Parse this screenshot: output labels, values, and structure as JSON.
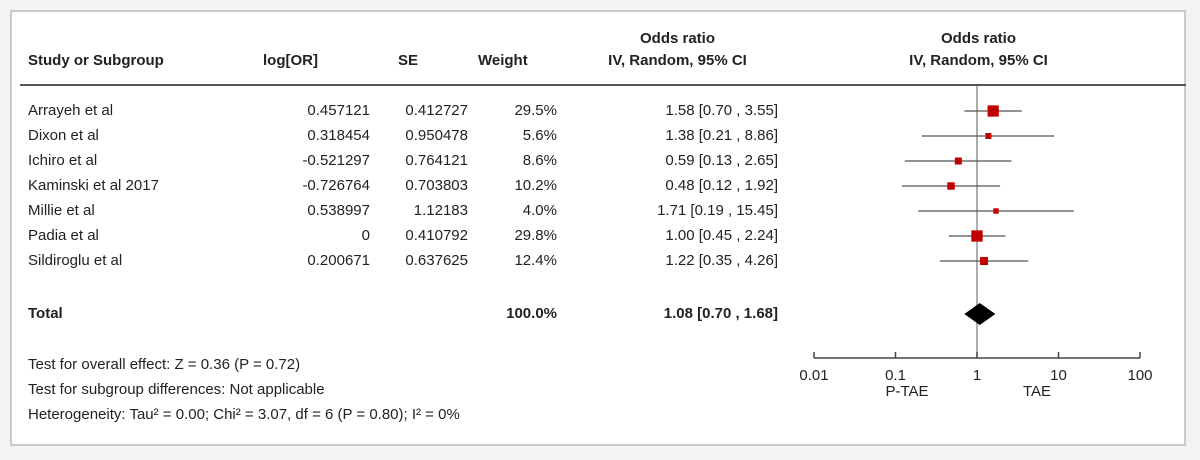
{
  "headers": {
    "study": "Study or Subgroup",
    "logor": "log[OR]",
    "se": "SE",
    "weight": "Weight",
    "or_group": "Odds ratio",
    "or_method": "IV, Random, 95% CI",
    "plot_group": "Odds ratio",
    "plot_method": "IV, Random, 95% CI"
  },
  "studies": [
    {
      "name": "Arrayeh et al",
      "logor": "0.457121",
      "se": "0.412727",
      "weight": "29.5%",
      "ci_text": "1.58 [0.70 , 3.55]"
    },
    {
      "name": "Dixon et al",
      "logor": "0.318454",
      "se": "0.950478",
      "weight": "5.6%",
      "ci_text": "1.38 [0.21 , 8.86]"
    },
    {
      "name": "Ichiro et al",
      "logor": "-0.521297",
      "se": "0.764121",
      "weight": "8.6%",
      "ci_text": "0.59 [0.13 , 2.65]"
    },
    {
      "name": "Kaminski et al 2017",
      "logor": "-0.726764",
      "se": "0.703803",
      "weight": "10.2%",
      "ci_text": "0.48 [0.12 , 1.92]"
    },
    {
      "name": "Millie et al",
      "logor": "0.538997",
      "se": "1.12183",
      "weight": "4.0%",
      "ci_text": "1.71 [0.19 , 15.45]"
    },
    {
      "name": "Padia et al",
      "logor": "0",
      "se": "0.410792",
      "weight": "29.8%",
      "ci_text": "1.00 [0.45 , 2.24]"
    },
    {
      "name": "Sildiroglu et al",
      "logor": "0.200671",
      "se": "0.637625",
      "weight": "12.4%",
      "ci_text": "1.22 [0.35 , 4.26]"
    }
  ],
  "total": {
    "label": "Total",
    "weight": "100.0%",
    "ci_text": "1.08 [0.70 , 1.68]"
  },
  "footer": {
    "overall": "Test for overall effect: Z = 0.36 (P = 0.72)",
    "subgroup": "Test for subgroup differences: Not applicable",
    "heterogeneity": "Heterogeneity: Tau² = 0.00; Chi² = 3.07, df = 6 (P = 0.80); I² = 0%"
  },
  "chart_data": {
    "type": "forest",
    "x_scale": "log",
    "xlim": [
      0.01,
      100
    ],
    "null_value": 1,
    "x_ticks": [
      "0.01",
      "0.1",
      "1",
      "10",
      "100"
    ],
    "x_tick_values": [
      0.01,
      0.1,
      1,
      10,
      100
    ],
    "side_labels": {
      "left": "P-TAE",
      "right": "TAE"
    },
    "marker_color": "#c00000",
    "diamond_color": "#000000",
    "points": [
      {
        "study": "Arrayeh et al",
        "or": 1.58,
        "lo": 0.7,
        "hi": 3.55,
        "weight": 29.5
      },
      {
        "study": "Dixon et al",
        "or": 1.38,
        "lo": 0.21,
        "hi": 8.86,
        "weight": 5.6
      },
      {
        "study": "Ichiro et al",
        "or": 0.59,
        "lo": 0.13,
        "hi": 2.65,
        "weight": 8.6
      },
      {
        "study": "Kaminski et al 2017",
        "or": 0.48,
        "lo": 0.12,
        "hi": 1.92,
        "weight": 10.2
      },
      {
        "study": "Millie et al",
        "or": 1.71,
        "lo": 0.19,
        "hi": 15.45,
        "weight": 4.0
      },
      {
        "study": "Padia et al",
        "or": 1.0,
        "lo": 0.45,
        "hi": 2.24,
        "weight": 29.8
      },
      {
        "study": "Sildiroglu et al",
        "or": 1.22,
        "lo": 0.35,
        "hi": 4.26,
        "weight": 12.4
      }
    ],
    "pooled": {
      "or": 1.08,
      "lo": 0.7,
      "hi": 1.68
    }
  }
}
